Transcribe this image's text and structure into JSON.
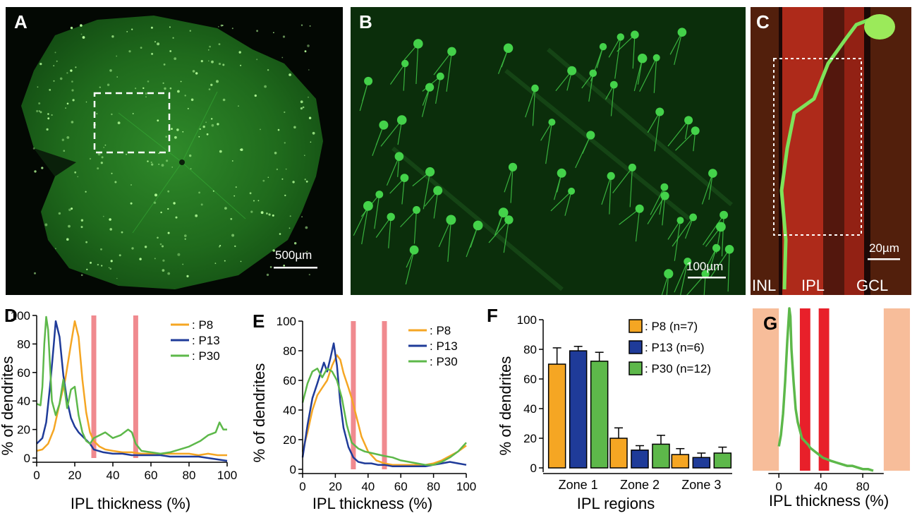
{
  "panels": {
    "a": {
      "label": "A",
      "scale_bar": "500µm"
    },
    "b": {
      "label": "B",
      "scale_bar": "100µm"
    },
    "c": {
      "label": "C",
      "scale_bar": "20µm",
      "layers": [
        "INL",
        "IPL",
        "GCL"
      ]
    }
  },
  "colors": {
    "p8": "#f5a623",
    "p13": "#1f3b99",
    "p30": "#5db84a",
    "boundary": "#f08a8f",
    "zone_band": "#f7bd9a",
    "red_band": "#e8202a",
    "fluor_green": "#44d24a"
  },
  "chart_data": [
    {
      "panel": "D",
      "type": "line",
      "xlabel": "IPL thickness (%)",
      "ylabel": "% of dendrites",
      "xlim": [
        0,
        100
      ],
      "ylim": [
        0,
        100
      ],
      "xticks": [
        "0",
        "20",
        "40",
        "60",
        "80",
        "100"
      ],
      "yticks": [
        "0",
        "20",
        "40",
        "60",
        "80",
        "100"
      ],
      "vlines": [
        30,
        52
      ],
      "legend": "top-right",
      "series": [
        {
          "name": ": P8",
          "key": "p8",
          "x": [
            0,
            3,
            6,
            9,
            12,
            15,
            18,
            20,
            22,
            24,
            26,
            28,
            30,
            33,
            36,
            40,
            45,
            50,
            55,
            60,
            65,
            70,
            75,
            80,
            85,
            90,
            95,
            100
          ],
          "y": [
            5,
            6,
            10,
            20,
            38,
            55,
            80,
            96,
            85,
            55,
            32,
            18,
            12,
            8,
            6,
            5,
            4,
            4,
            3,
            3,
            3,
            3,
            3,
            3,
            2,
            3,
            2,
            2
          ]
        },
        {
          "name": ": P13",
          "key": "p13",
          "x": [
            0,
            3,
            5,
            7,
            9,
            10,
            12,
            14,
            16,
            18,
            20,
            22,
            25,
            28,
            30,
            35,
            40,
            45,
            50,
            55,
            60,
            65,
            70,
            75,
            80,
            85,
            90,
            95,
            100
          ],
          "y": [
            10,
            14,
            25,
            50,
            80,
            96,
            85,
            58,
            40,
            28,
            22,
            18,
            14,
            10,
            6,
            4,
            3,
            3,
            2,
            2,
            2,
            2,
            1,
            1,
            1,
            1,
            0,
            -1,
            -2
          ]
        },
        {
          "name": ": P30",
          "key": "p30",
          "x": [
            0,
            2,
            3,
            4,
            5,
            6,
            7,
            8,
            10,
            12,
            14,
            16,
            18,
            20,
            22,
            24,
            26,
            28,
            30,
            33,
            36,
            40,
            44,
            48,
            50,
            52,
            55,
            60,
            65,
            70,
            75,
            80,
            83,
            86,
            88,
            90,
            92,
            94,
            96,
            98,
            100
          ],
          "y": [
            38,
            37,
            50,
            80,
            99,
            90,
            65,
            40,
            30,
            38,
            55,
            35,
            48,
            50,
            30,
            18,
            12,
            10,
            14,
            16,
            18,
            14,
            16,
            20,
            18,
            10,
            5,
            4,
            3,
            4,
            6,
            8,
            10,
            12,
            14,
            16,
            17,
            18,
            25,
            20,
            20
          ]
        }
      ]
    },
    {
      "panel": "E",
      "type": "line",
      "xlabel": "IPL thickness (%)",
      "ylabel": "% of dendrites",
      "xlim": [
        0,
        100
      ],
      "ylim": [
        0,
        100
      ],
      "xticks": [
        "0",
        "20",
        "40",
        "60",
        "80",
        "100"
      ],
      "yticks": [
        "0",
        "20",
        "40",
        "60",
        "80",
        "100"
      ],
      "vlines": [
        31,
        50
      ],
      "legend": "top-right",
      "series": [
        {
          "name": ": P8",
          "key": "p8",
          "x": [
            0,
            3,
            6,
            9,
            12,
            15,
            18,
            21,
            23,
            25,
            28,
            30,
            33,
            36,
            40,
            45,
            50,
            55,
            60,
            65,
            70,
            75,
            80,
            85,
            90,
            95,
            100
          ],
          "y": [
            12,
            25,
            40,
            50,
            55,
            60,
            70,
            77,
            74,
            65,
            55,
            48,
            35,
            22,
            12,
            6,
            4,
            3,
            3,
            3,
            3,
            3,
            4,
            6,
            9,
            12,
            16
          ]
        },
        {
          "name": ": P13",
          "key": "p13",
          "x": [
            0,
            3,
            6,
            9,
            11,
            13,
            15,
            17,
            19,
            21,
            23,
            25,
            28,
            31,
            34,
            38,
            42,
            46,
            50,
            55,
            60,
            65,
            70,
            75,
            80,
            85,
            90,
            95,
            100
          ],
          "y": [
            8,
            30,
            48,
            58,
            65,
            72,
            66,
            75,
            85,
            70,
            45,
            28,
            15,
            8,
            5,
            4,
            4,
            3,
            3,
            2,
            2,
            2,
            2,
            2,
            3,
            4,
            5,
            4,
            3
          ]
        },
        {
          "name": ": P30",
          "key": "p30",
          "x": [
            0,
            3,
            6,
            9,
            12,
            15,
            18,
            21,
            24,
            27,
            30,
            34,
            38,
            42,
            46,
            50,
            55,
            60,
            65,
            70,
            75,
            80,
            85,
            90,
            95,
            100
          ],
          "y": [
            45,
            58,
            66,
            68,
            62,
            68,
            66,
            60,
            48,
            30,
            18,
            14,
            12,
            11,
            10,
            9,
            8,
            6,
            5,
            4,
            3,
            3,
            5,
            8,
            12,
            18
          ]
        }
      ]
    },
    {
      "panel": "F",
      "type": "bar",
      "categories": [
        "Zone 1",
        "Zone 2",
        "Zone 3"
      ],
      "xlabel": "IPL regions",
      "ylabel": "% of dendrites",
      "ylim": [
        0,
        100
      ],
      "yticks": [
        "0",
        "20",
        "40",
        "60",
        "80",
        "100"
      ],
      "legend": "top-right",
      "series": [
        {
          "name": ": P8 (n=7)",
          "key": "p8",
          "values": [
            70,
            20,
            9
          ],
          "errors": [
            11,
            7,
            4
          ]
        },
        {
          "name": ": P13 (n=6)",
          "key": "p13",
          "values": [
            79,
            12,
            7
          ],
          "errors": [
            3,
            3,
            3
          ]
        },
        {
          "name": ": P30 (n=12)",
          "key": "p30",
          "values": [
            72,
            16,
            10
          ],
          "errors": [
            6,
            6,
            4
          ]
        }
      ]
    },
    {
      "panel": "G",
      "type": "line",
      "xlabel": "IPL thickness (%)",
      "xlim": [
        -25,
        100
      ],
      "ylim": [
        0,
        100
      ],
      "xticks": [
        "0",
        "40",
        "80"
      ],
      "shaded_zones": [
        [
          -25,
          0
        ],
        [
          100,
          125
        ]
      ],
      "red_bands": [
        [
          20,
          30
        ],
        [
          38,
          48
        ]
      ],
      "series": [
        {
          "key": "p30",
          "x": [
            0,
            2,
            4,
            6,
            8,
            10,
            11,
            12,
            14,
            16,
            18,
            20,
            22,
            25,
            28,
            30,
            34,
            38,
            42,
            46,
            50,
            55,
            60,
            65,
            70,
            75,
            80,
            85,
            90
          ],
          "y": [
            15,
            22,
            35,
            55,
            80,
            100,
            95,
            75,
            55,
            38,
            30,
            25,
            20,
            18,
            16,
            14,
            12,
            10,
            8,
            7,
            6,
            5,
            4,
            3,
            3,
            2,
            1,
            1,
            0
          ]
        }
      ]
    }
  ],
  "chart_labels": {
    "d": {
      "panel": "D",
      "xlabel": "IPL thickness (%)",
      "ylabel": "% of dendrites",
      "legend": [
        ": P8",
        ": P13",
        ": P30"
      ]
    },
    "e": {
      "panel": "E",
      "xlabel": "IPL thickness (%)",
      "ylabel": "% of dendrites",
      "legend": [
        ": P8",
        ": P13",
        ": P30"
      ]
    },
    "f": {
      "panel": "F",
      "xlabel": "IPL regions",
      "ylabel": "% of dendrites",
      "legend": [
        ": P8 (n=7)",
        ": P13 (n=6)",
        ": P30 (n=12)"
      ],
      "categories": [
        "Zone 1",
        "Zone 2",
        "Zone 3"
      ]
    },
    "g": {
      "panel": "G",
      "xlabel": "IPL thickness (%)"
    }
  }
}
